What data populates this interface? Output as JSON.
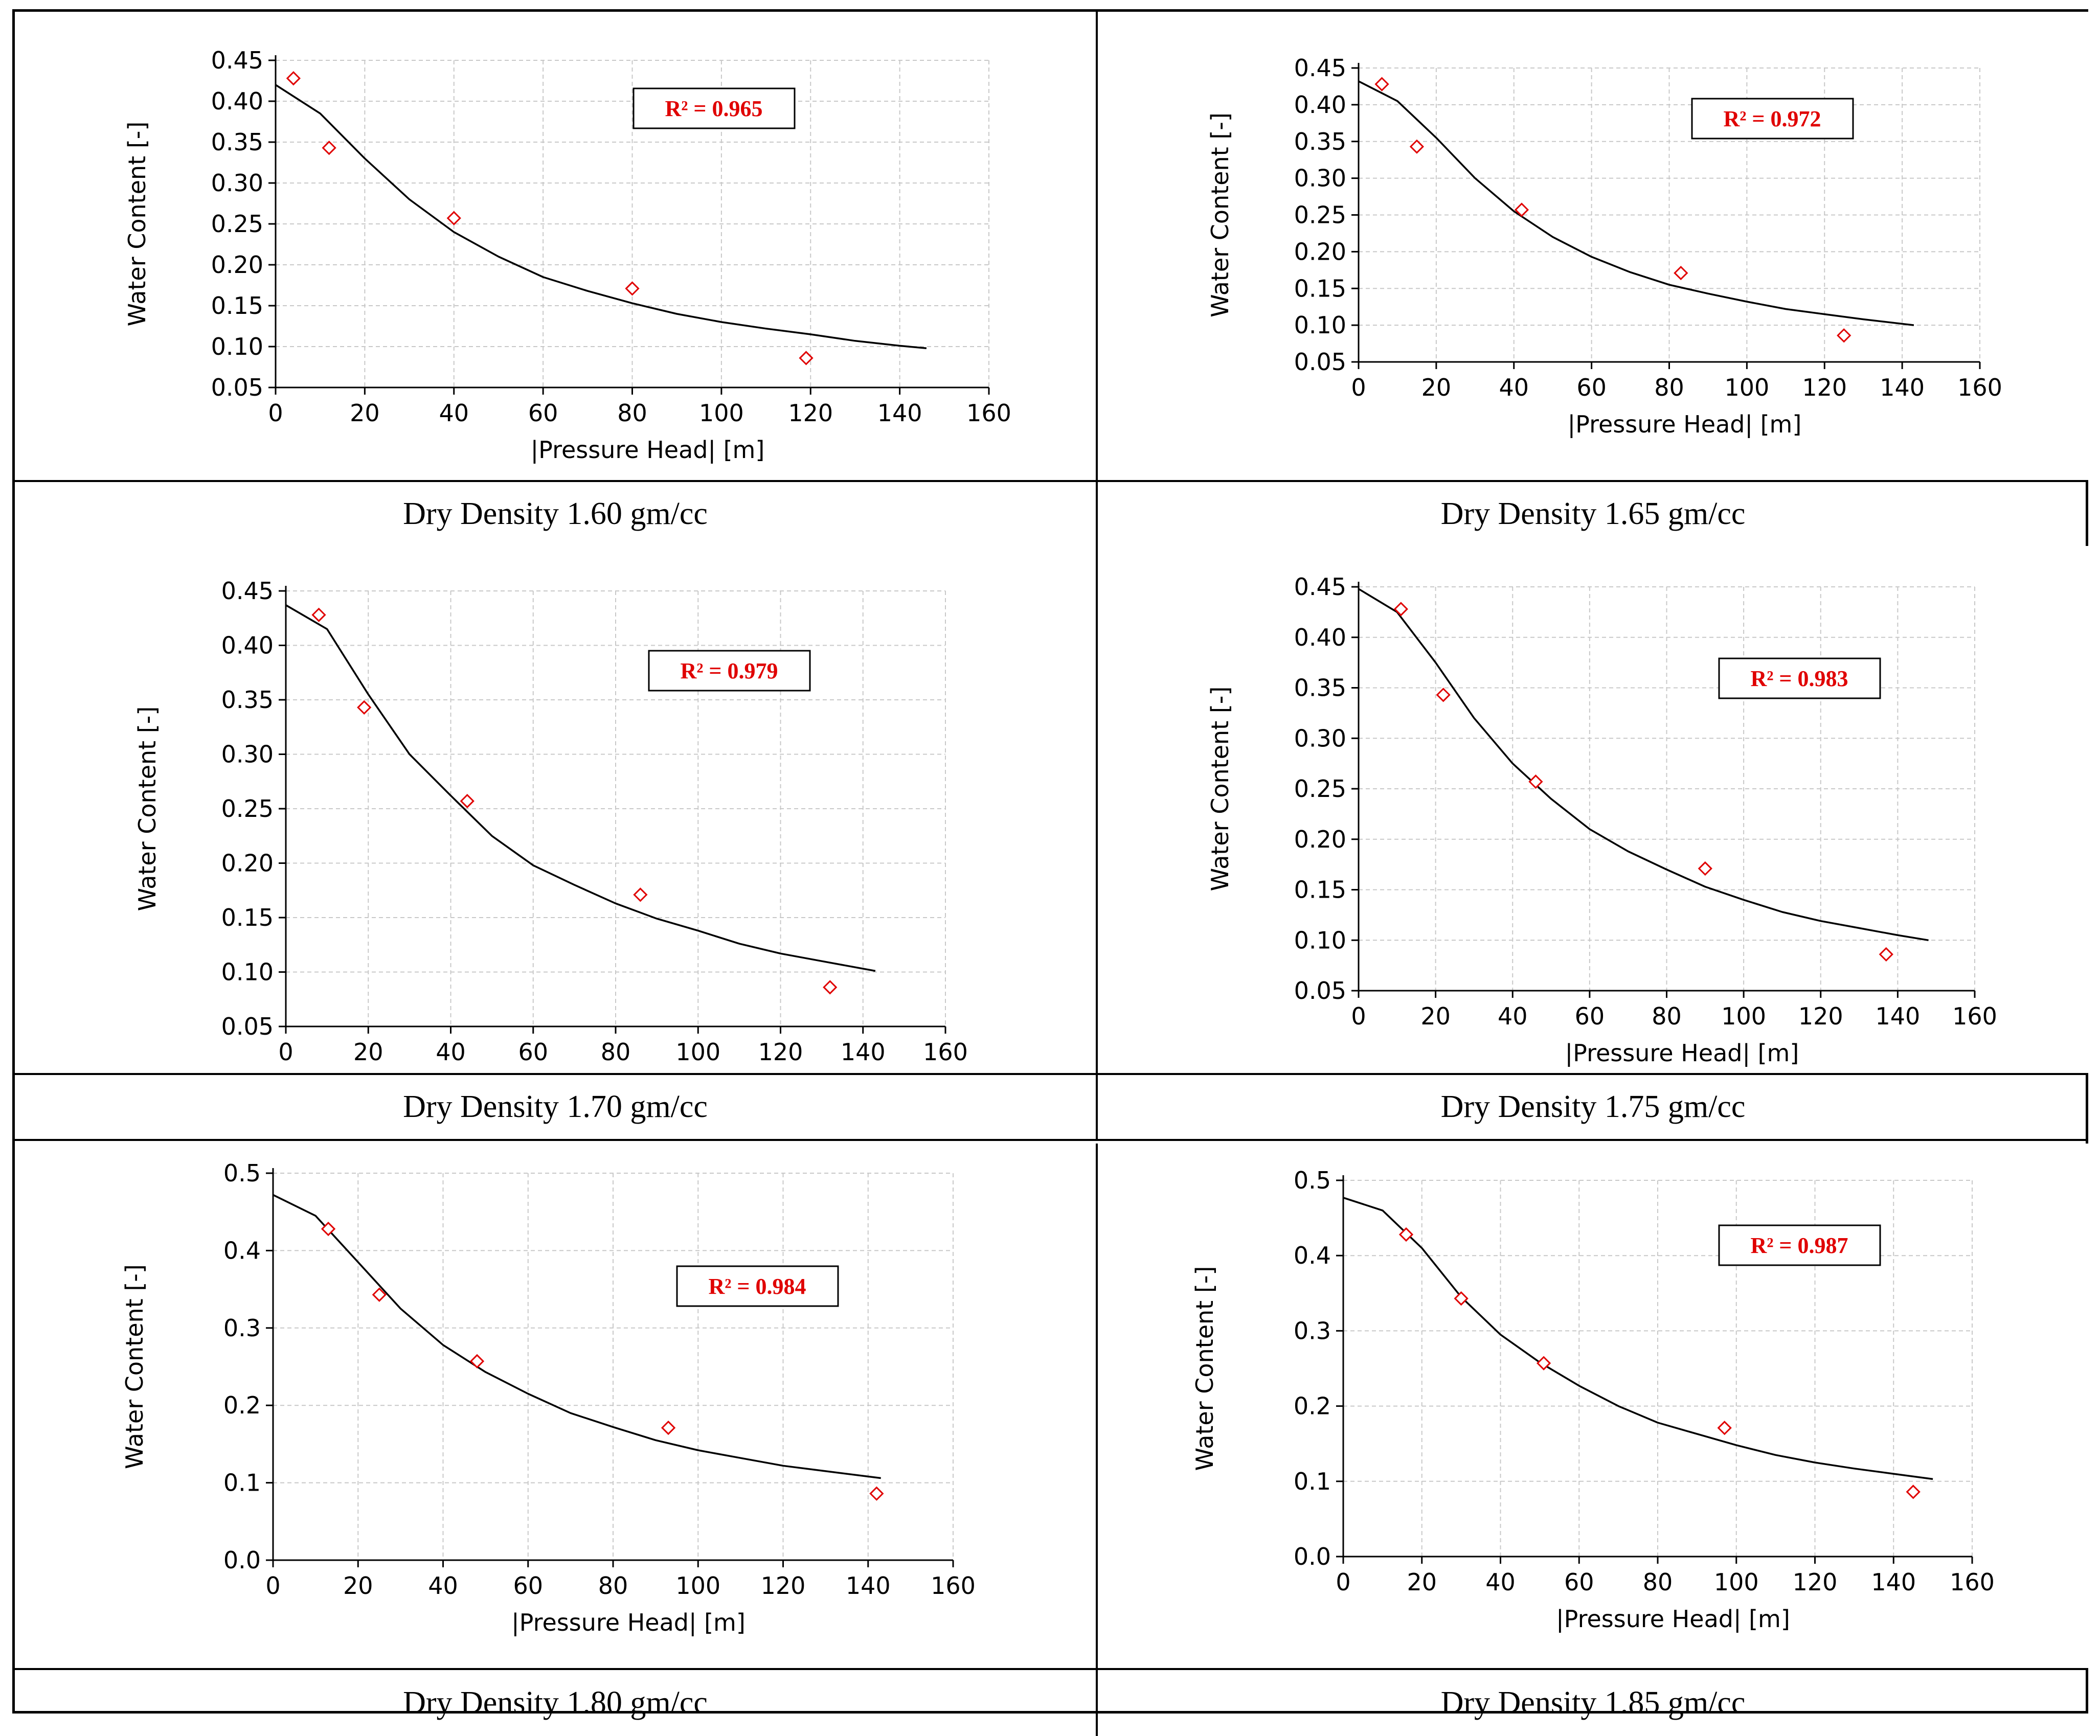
{
  "chart_data": [
    {
      "type": "scatter",
      "caption": "Dry Density 1.60 gm/cc",
      "xlabel": "|Pressure Head| [m]",
      "ylabel": "Water Content [-]",
      "xlim": [
        0,
        160
      ],
      "ylim": [
        0.05,
        0.45
      ],
      "xticks": [
        "0",
        "20",
        "40",
        "60",
        "80",
        "100",
        "120",
        "140",
        "160"
      ],
      "yticks": [
        "0.05",
        "0.10",
        "0.15",
        "0.20",
        "0.25",
        "0.30",
        "0.35",
        "0.40",
        "0.45"
      ],
      "grid": true,
      "r2_label": "R² = 0.965",
      "points": {
        "x": [
          4,
          12,
          40,
          80,
          119
        ],
        "y": [
          0.428,
          0.343,
          0.257,
          0.171,
          0.086
        ]
      },
      "fit": {
        "x": [
          0,
          10,
          20,
          30,
          40,
          50,
          60,
          70,
          80,
          90,
          100,
          110,
          120,
          130,
          140,
          146
        ],
        "y": [
          0.42,
          0.385,
          0.33,
          0.28,
          0.24,
          0.21,
          0.185,
          0.168,
          0.153,
          0.14,
          0.13,
          0.122,
          0.115,
          0.107,
          0.101,
          0.098
        ]
      }
    },
    {
      "type": "scatter",
      "caption": "Dry Density 1.65 gm/cc",
      "xlabel": "|Pressure Head| [m]",
      "ylabel": "Water Content [-]",
      "xlim": [
        0,
        160
      ],
      "ylim": [
        0.05,
        0.45
      ],
      "xticks": [
        "0",
        "20",
        "40",
        "60",
        "80",
        "100",
        "120",
        "140",
        "160"
      ],
      "yticks": [
        "0.05",
        "0.10",
        "0.15",
        "0.20",
        "0.25",
        "0.30",
        "0.35",
        "0.40",
        "0.45"
      ],
      "grid": true,
      "r2_label": "R² = 0.972",
      "points": {
        "x": [
          6,
          15,
          42,
          83,
          125
        ],
        "y": [
          0.428,
          0.343,
          0.257,
          0.171,
          0.086
        ]
      },
      "fit": {
        "x": [
          0,
          10,
          20,
          30,
          40,
          50,
          60,
          70,
          80,
          90,
          100,
          110,
          120,
          130,
          143
        ],
        "y": [
          0.432,
          0.405,
          0.355,
          0.3,
          0.255,
          0.22,
          0.193,
          0.172,
          0.155,
          0.143,
          0.132,
          0.122,
          0.115,
          0.108,
          0.1
        ]
      }
    },
    {
      "type": "scatter",
      "caption": "Dry Density 1.70 gm/cc",
      "xlabel": "|Pressure Head| [m]",
      "ylabel": "Water Content [-]",
      "xlim": [
        0,
        160
      ],
      "ylim": [
        0.05,
        0.45
      ],
      "xticks": [
        "0",
        "20",
        "40",
        "60",
        "80",
        "100",
        "120",
        "140",
        "160"
      ],
      "yticks": [
        "0.05",
        "0.10",
        "0.15",
        "0.20",
        "0.25",
        "0.30",
        "0.35",
        "0.40",
        "0.45"
      ],
      "grid": true,
      "r2_label": "R² = 0.979",
      "points": {
        "x": [
          8,
          19,
          44,
          86,
          132
        ],
        "y": [
          0.428,
          0.343,
          0.257,
          0.171,
          0.086
        ]
      },
      "fit": {
        "x": [
          0,
          10,
          20,
          30,
          40,
          50,
          60,
          70,
          80,
          90,
          100,
          110,
          120,
          130,
          143
        ],
        "y": [
          0.437,
          0.415,
          0.355,
          0.3,
          0.262,
          0.225,
          0.198,
          0.18,
          0.163,
          0.149,
          0.138,
          0.126,
          0.117,
          0.11,
          0.101
        ]
      }
    },
    {
      "type": "scatter",
      "caption": "Dry Density 1.75 gm/cc",
      "xlabel": "|Pressure Head| [m]",
      "ylabel": "Water Content [-]",
      "xlim": [
        0,
        160
      ],
      "ylim": [
        0.05,
        0.45
      ],
      "xticks": [
        "0",
        "20",
        "40",
        "60",
        "80",
        "100",
        "120",
        "140",
        "160"
      ],
      "yticks": [
        "0.05",
        "0.10",
        "0.15",
        "0.20",
        "0.25",
        "0.30",
        "0.35",
        "0.40",
        "0.45"
      ],
      "grid": true,
      "r2_label": "R² = 0.983",
      "points": {
        "x": [
          11,
          22,
          46,
          90,
          137
        ],
        "y": [
          0.428,
          0.343,
          0.257,
          0.171,
          0.086
        ]
      },
      "fit": {
        "x": [
          0,
          10,
          20,
          30,
          40,
          50,
          60,
          70,
          80,
          90,
          100,
          110,
          120,
          130,
          140,
          148
        ],
        "y": [
          0.448,
          0.425,
          0.375,
          0.32,
          0.275,
          0.24,
          0.21,
          0.188,
          0.17,
          0.153,
          0.14,
          0.128,
          0.119,
          0.112,
          0.105,
          0.1
        ]
      }
    },
    {
      "type": "scatter",
      "caption": "Dry Density 1.80 gm/cc",
      "xlabel": "|Pressure Head| [m]",
      "ylabel": "Water Content [-]",
      "xlim": [
        0,
        160
      ],
      "ylim": [
        0.0,
        0.5
      ],
      "xticks": [
        "0",
        "20",
        "40",
        "60",
        "80",
        "100",
        "120",
        "140",
        "160"
      ],
      "yticks": [
        "0.0",
        "0.1",
        "0.2",
        "0.3",
        "0.4",
        "0.5"
      ],
      "grid": true,
      "r2_label": "R² = 0.984",
      "points": {
        "x": [
          13,
          25,
          48,
          93,
          142
        ],
        "y": [
          0.428,
          0.343,
          0.257,
          0.171,
          0.086
        ]
      },
      "fit": {
        "x": [
          0,
          10,
          20,
          30,
          40,
          50,
          60,
          70,
          80,
          90,
          100,
          110,
          120,
          130,
          143
        ],
        "y": [
          0.472,
          0.445,
          0.385,
          0.325,
          0.278,
          0.243,
          0.215,
          0.19,
          0.172,
          0.155,
          0.142,
          0.132,
          0.122,
          0.115,
          0.106
        ]
      }
    },
    {
      "type": "scatter",
      "caption": "Dry Density 1.85 gm/cc",
      "xlabel": "|Pressure Head| [m]",
      "ylabel": "Water Content [-]",
      "xlim": [
        0,
        160
      ],
      "ylim": [
        0.0,
        0.5
      ],
      "xticks": [
        "0",
        "20",
        "40",
        "60",
        "80",
        "100",
        "120",
        "140",
        "160"
      ],
      "yticks": [
        "0.0",
        "0.1",
        "0.2",
        "0.3",
        "0.4",
        "0.5"
      ],
      "grid": true,
      "r2_label": "R² = 0.987",
      "points": {
        "x": [
          16,
          30,
          51,
          97,
          145
        ],
        "y": [
          0.428,
          0.343,
          0.257,
          0.171,
          0.086
        ]
      },
      "fit": {
        "x": [
          0,
          10,
          20,
          30,
          40,
          50,
          60,
          70,
          80,
          90,
          100,
          110,
          120,
          130,
          140,
          150
        ],
        "y": [
          0.477,
          0.46,
          0.41,
          0.345,
          0.295,
          0.258,
          0.227,
          0.2,
          0.178,
          0.163,
          0.148,
          0.135,
          0.125,
          0.117,
          0.11,
          0.103
        ]
      }
    }
  ]
}
